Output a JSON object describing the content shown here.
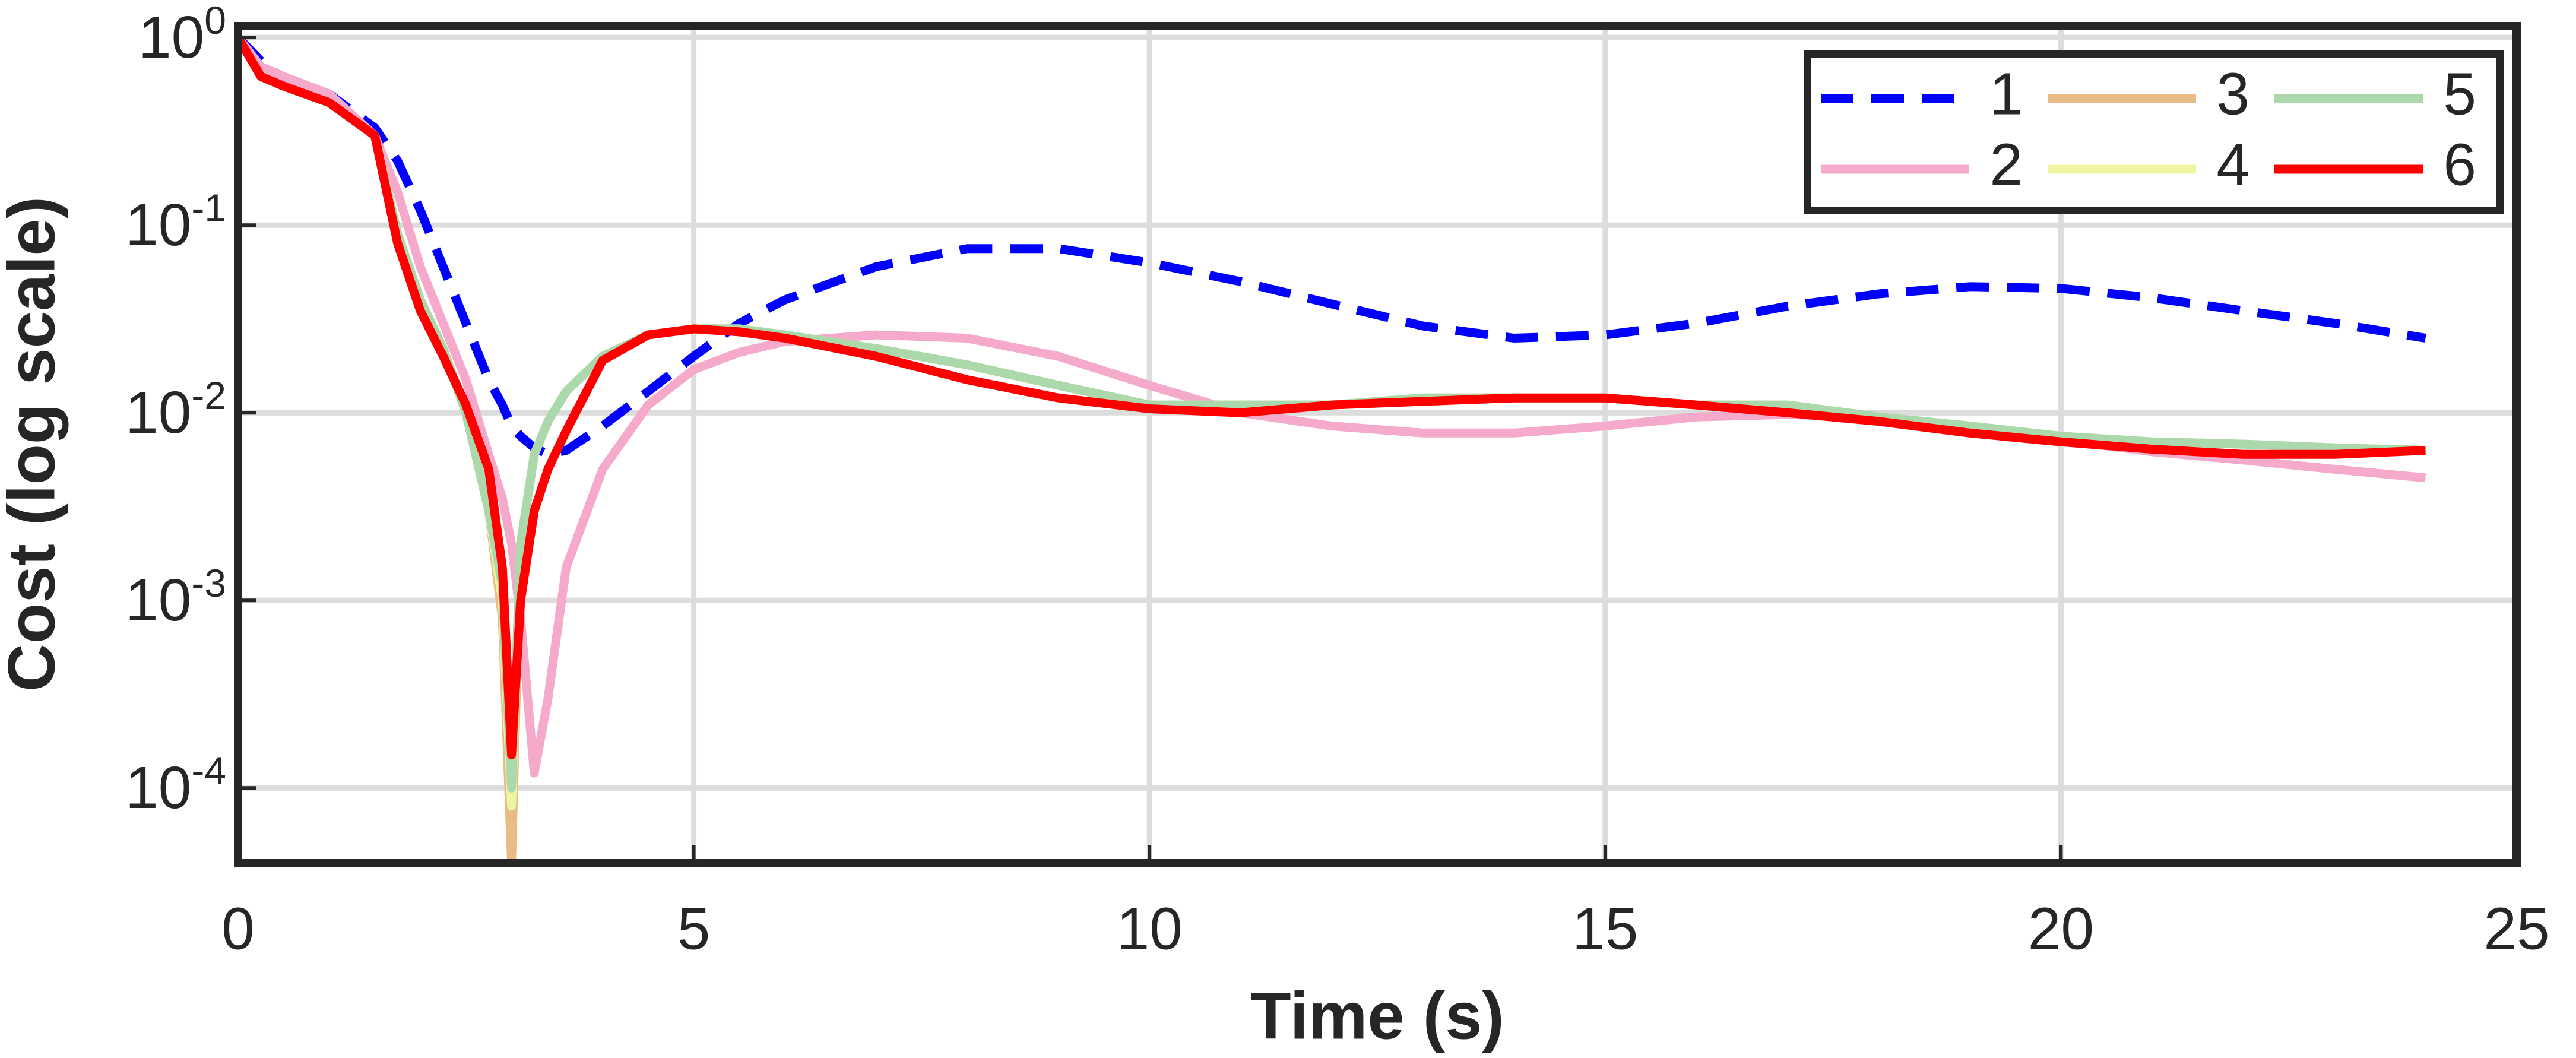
{
  "chart_data": {
    "type": "line",
    "x_label": "Time (s)",
    "y_label": "Cost (log scale)",
    "y_log": true,
    "grid": true,
    "legend": "northeast",
    "legend_columns": 3,
    "xlim": [
      0,
      25
    ],
    "xticks": [
      0,
      5,
      10,
      15,
      20,
      25
    ],
    "ylim": [
      4e-05,
      1.15
    ],
    "yticks": [
      {
        "value": 0.0001,
        "label": "10^-4"
      },
      {
        "value": 0.001,
        "label": "10^-3"
      },
      {
        "value": 0.01,
        "label": "10^-2"
      },
      {
        "value": 0.1,
        "label": "10^-1"
      },
      {
        "value": 1,
        "label": "10^0"
      }
    ],
    "x": [
      0,
      0.25,
      0.5,
      1,
      1.5,
      1.75,
      2,
      2.25,
      2.5,
      2.75,
      2.9,
      3,
      3.1,
      3.25,
      3.4,
      3.6,
      4,
      4.5,
      5,
      5.5,
      6,
      7,
      8,
      9,
      10,
      11,
      12,
      13,
      14,
      15,
      16,
      17,
      18,
      19,
      20,
      21,
      22,
      23,
      24
    ],
    "series": [
      {
        "name": "1",
        "color": "#0000ff",
        "dashed": true,
        "values": [
          1.0,
          0.75,
          0.6,
          0.5,
          0.33,
          0.22,
          0.12,
          0.06,
          0.03,
          0.015,
          0.011,
          0.0085,
          0.0075,
          0.0065,
          0.006,
          0.0063,
          0.0085,
          0.013,
          0.02,
          0.03,
          0.04,
          0.06,
          0.075,
          0.075,
          0.063,
          0.05,
          0.038,
          0.029,
          0.025,
          0.026,
          0.03,
          0.037,
          0.043,
          0.047,
          0.046,
          0.041,
          0.035,
          0.03,
          0.025
        ]
      },
      {
        "name": "2",
        "color": "#f5aacb",
        "values": [
          1.0,
          0.7,
          0.62,
          0.5,
          0.3,
          0.15,
          0.06,
          0.03,
          0.015,
          0.006,
          0.0035,
          0.002,
          0.0008,
          0.00012,
          0.0003,
          0.0015,
          0.005,
          0.011,
          0.017,
          0.021,
          0.024,
          0.026,
          0.025,
          0.02,
          0.014,
          0.01,
          0.0085,
          0.0078,
          0.0078,
          0.0085,
          0.0095,
          0.0098,
          0.0095,
          0.0085,
          0.0072,
          0.0062,
          0.0056,
          0.005,
          0.0045
        ]
      },
      {
        "name": "3",
        "color": "#e9bb85",
        "values": [
          1.0,
          0.62,
          0.55,
          0.45,
          0.3,
          0.09,
          0.04,
          0.022,
          0.01,
          0.003,
          0.0008,
          4e-05,
          0.002,
          0.006,
          0.009,
          0.013,
          0.02,
          0.026,
          0.028,
          0.028,
          0.026,
          0.022,
          0.018,
          0.014,
          0.011,
          0.011,
          0.011,
          0.012,
          0.012,
          0.012,
          0.011,
          0.011,
          0.0095,
          0.0085,
          0.0075,
          0.007,
          0.0068,
          0.0065,
          0.0063
        ]
      },
      {
        "name": "4",
        "color": "#eef5a0",
        "values": [
          1.0,
          0.62,
          0.55,
          0.45,
          0.3,
          0.09,
          0.04,
          0.022,
          0.01,
          0.003,
          0.001,
          8e-05,
          0.002,
          0.006,
          0.009,
          0.013,
          0.02,
          0.026,
          0.028,
          0.028,
          0.026,
          0.022,
          0.018,
          0.014,
          0.011,
          0.011,
          0.011,
          0.012,
          0.012,
          0.012,
          0.011,
          0.011,
          0.0095,
          0.0085,
          0.0075,
          0.007,
          0.0068,
          0.0065,
          0.0063
        ]
      },
      {
        "name": "5",
        "color": "#acd9ac",
        "values": [
          1.0,
          0.62,
          0.55,
          0.45,
          0.3,
          0.09,
          0.04,
          0.022,
          0.01,
          0.003,
          0.0012,
          0.0001,
          0.002,
          0.006,
          0.009,
          0.013,
          0.02,
          0.026,
          0.028,
          0.028,
          0.026,
          0.022,
          0.018,
          0.014,
          0.011,
          0.011,
          0.011,
          0.012,
          0.012,
          0.012,
          0.011,
          0.011,
          0.0095,
          0.0085,
          0.0075,
          0.007,
          0.0068,
          0.0065,
          0.0063
        ]
      },
      {
        "name": "6",
        "color": "#ff0000",
        "values": [
          1.0,
          0.62,
          0.55,
          0.45,
          0.3,
          0.08,
          0.035,
          0.02,
          0.011,
          0.005,
          0.0015,
          0.00015,
          0.001,
          0.003,
          0.005,
          0.008,
          0.019,
          0.026,
          0.028,
          0.027,
          0.025,
          0.02,
          0.015,
          0.012,
          0.0105,
          0.01,
          0.011,
          0.0115,
          0.012,
          0.012,
          0.011,
          0.01,
          0.009,
          0.0078,
          0.007,
          0.0064,
          0.006,
          0.006,
          0.0063
        ]
      }
    ]
  }
}
